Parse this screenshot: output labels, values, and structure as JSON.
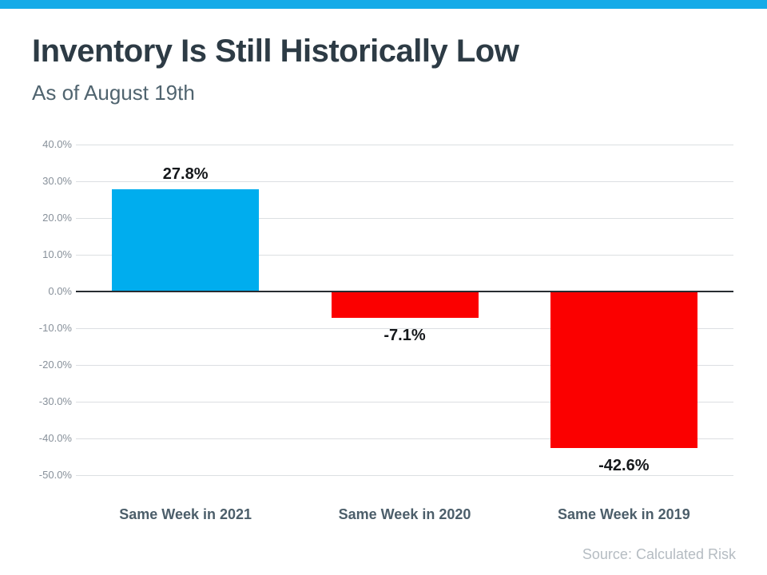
{
  "page": {
    "title": "Inventory Is Still Historically Low",
    "subtitle": "As of August 19th",
    "source": "Source: Calculated Risk"
  },
  "theme": {
    "stripe_color": "#14ABE8",
    "title_color": "#2D3B45",
    "subtitle_color": "#50646F",
    "grid_color": "#DCDFE2",
    "zero_line_color": "#272C31",
    "tick_label_color": "#87909A",
    "category_label_color": "#4C5E6A",
    "value_label_color": "#15181B",
    "source_color": "#B5BCC2"
  },
  "chart_data": {
    "type": "bar",
    "title": "Inventory Is Still Historically Low",
    "subtitle": "As of August 19th",
    "categories": [
      "Same Week in 2021",
      "Same Week in 2020",
      "Same Week in 2019"
    ],
    "values": [
      27.8,
      -7.1,
      -42.6
    ],
    "value_labels": [
      "27.8%",
      "-7.1%",
      "-42.6%"
    ],
    "bar_colors": [
      "#00ADEE",
      "#FB0000",
      "#FB0000"
    ],
    "xlabel": "",
    "ylabel": "",
    "ylim": [
      -50,
      40
    ],
    "ytick_step": 10,
    "ytick_labels": [
      "40.0%",
      "30.0%",
      "20.0%",
      "10.0%",
      "0.0%",
      "-10.0%",
      "-20.0%",
      "-30.0%",
      "-40.0%",
      "-50.0%"
    ],
    "grid": true,
    "legend": false,
    "annotation": "Source: Calculated Risk"
  }
}
